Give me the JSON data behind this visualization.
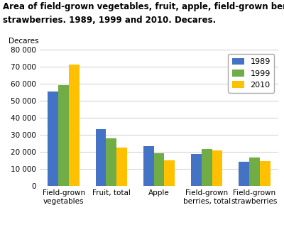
{
  "title_line1": "Area of field-grown vegetables, fruit, apple, field-grown berries and",
  "title_line2": "strawberries. 1989, 1999 and 2010. Decares.",
  "ylabel": "Decares",
  "categories": [
    "Field-grown\nvegetables",
    "Fruit, total",
    "Apple",
    "Field-grown\nberries, total",
    "Field-grown\nstrawberries"
  ],
  "series": {
    "1989": [
      55500,
      33500,
      23500,
      19000,
      14500
    ],
    "1999": [
      59500,
      28000,
      19500,
      22000,
      17000
    ],
    "2010": [
      71500,
      22500,
      15000,
      21000,
      14800
    ]
  },
  "colors": {
    "1989": "#4472C4",
    "1999": "#70AD47",
    "2010": "#FFC000"
  },
  "ylim": [
    0,
    80000
  ],
  "yticks": [
    0,
    10000,
    20000,
    30000,
    40000,
    50000,
    60000,
    70000,
    80000
  ],
  "ytick_labels": [
    "0",
    "10 000",
    "20 000",
    "30 000",
    "40 000",
    "50 000",
    "60 000",
    "70 000",
    "80 000"
  ],
  "bar_width": 0.22,
  "title_fontsize": 8.5,
  "axis_label_fontsize": 7.5,
  "tick_fontsize": 7.5,
  "legend_fontsize": 8,
  "background_color": "#ffffff",
  "grid_color": "#cccccc"
}
